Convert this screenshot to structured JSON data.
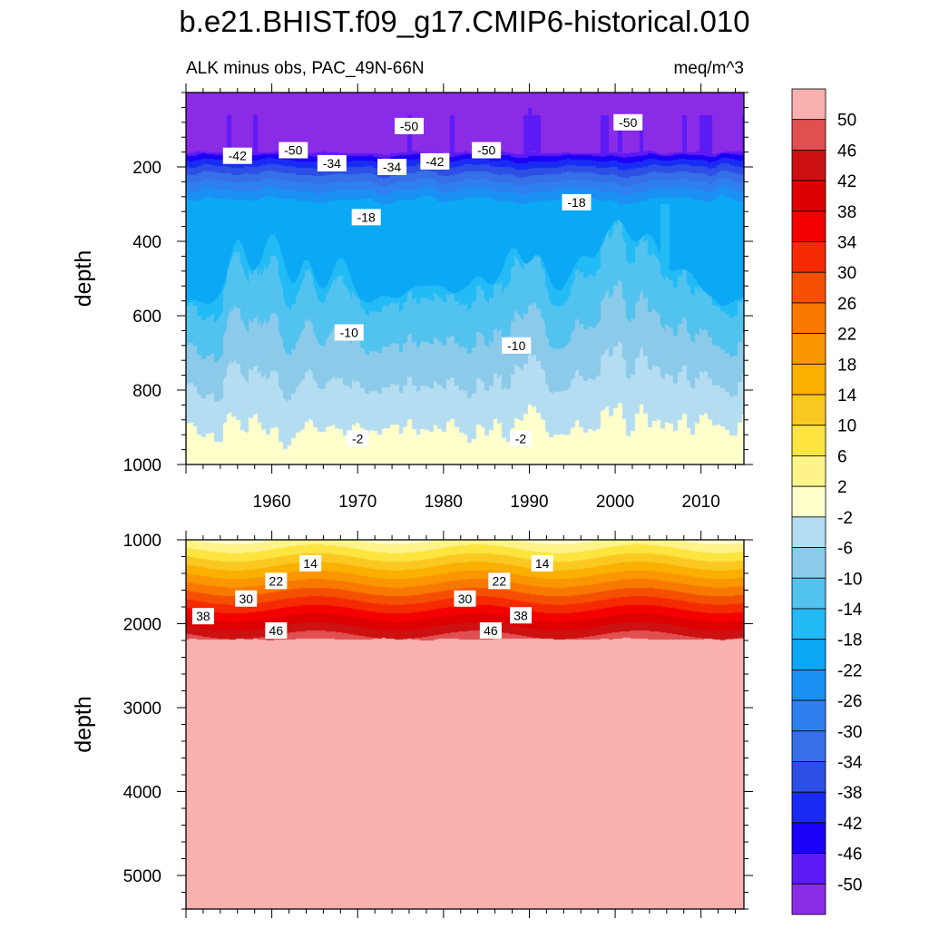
{
  "title": "b.e21.BHIST.f09_g17.CMIP6-historical.010",
  "subtitle_left": "ALK minus obs, PAC_49N-66N",
  "subtitle_right": "meq/m^3",
  "colors": {
    "levels_palette": [
      "#8a2be6",
      "#5c1af5",
      "#1a00f7",
      "#1a2bf5",
      "#2d4fe6",
      "#3670e8",
      "#2f80ef",
      "#1a90f5",
      "#0aa8f5",
      "#22bbf5",
      "#52c2ef",
      "#8ccaea",
      "#b5ddf2",
      "#ffffcc",
      "#fff38a",
      "#fde43f",
      "#fbc822",
      "#fbb000",
      "#fa9600",
      "#f87800",
      "#f55000",
      "#f52a00",
      "#f50000",
      "#de0000",
      "#cd1010",
      "#e05050",
      "#fbb0b0"
    ]
  },
  "chart_data": [
    {
      "type": "heatmap",
      "panel": "upper",
      "ylabel": "depth",
      "xlim": [
        1950,
        2015
      ],
      "ylim": [
        0,
        1000
      ],
      "y_inverted": true,
      "xticks": [
        1960,
        1970,
        1980,
        1990,
        2000,
        2010
      ],
      "xtick_labels": [
        "1960",
        "1970",
        "1980",
        "1990",
        "2000",
        "2010"
      ],
      "yticks": [
        200,
        400,
        600,
        800,
        1000
      ],
      "ytick_labels": [
        "200",
        "400",
        "600",
        "800",
        "1000"
      ],
      "contour_labels": [
        {
          "text": "-50",
          "x": 1962.5,
          "y": 155
        },
        {
          "text": "-42",
          "x": 1956.0,
          "y": 170
        },
        {
          "text": "-50",
          "x": 1976.0,
          "y": 90
        },
        {
          "text": "-34",
          "x": 1967.0,
          "y": 190
        },
        {
          "text": "-34",
          "x": 1974.0,
          "y": 200
        },
        {
          "text": "-42",
          "x": 1979.0,
          "y": 185
        },
        {
          "text": "-50",
          "x": 1985.0,
          "y": 155
        },
        {
          "text": "-50",
          "x": 2001.5,
          "y": 80
        },
        {
          "text": "-18",
          "x": 1971.0,
          "y": 335
        },
        {
          "text": "-18",
          "x": 1995.5,
          "y": 295
        },
        {
          "text": "-10",
          "x": 1969.0,
          "y": 645
        },
        {
          "text": "-10",
          "x": 1988.5,
          "y": 680
        },
        {
          "text": "-2",
          "x": 1970.0,
          "y": 930
        },
        {
          "text": "-2",
          "x": 1989.0,
          "y": 930
        }
      ]
    },
    {
      "type": "heatmap",
      "panel": "lower",
      "ylabel": "depth",
      "xlim": [
        1950,
        2015
      ],
      "ylim": [
        1000,
        5400
      ],
      "y_inverted": true,
      "yticks": [
        1000,
        2000,
        3000,
        4000,
        5000
      ],
      "ytick_labels": [
        "1000",
        "2000",
        "3000",
        "4000",
        "5000"
      ],
      "contour_labels": [
        {
          "text": "14",
          "x": 1964.5,
          "y": 1280
        },
        {
          "text": "14",
          "x": 1991.5,
          "y": 1280
        },
        {
          "text": "22",
          "x": 1960.5,
          "y": 1490
        },
        {
          "text": "22",
          "x": 1986.5,
          "y": 1490
        },
        {
          "text": "30",
          "x": 1957.0,
          "y": 1700
        },
        {
          "text": "30",
          "x": 1982.5,
          "y": 1700
        },
        {
          "text": "38",
          "x": 1952.0,
          "y": 1910
        },
        {
          "text": "38",
          "x": 1989.0,
          "y": 1900
        },
        {
          "text": "46",
          "x": 1960.5,
          "y": 2080
        },
        {
          "text": "46",
          "x": 1985.5,
          "y": 2080
        }
      ]
    }
  ],
  "colorbar": {
    "labels": [
      "50",
      "46",
      "42",
      "38",
      "34",
      "30",
      "26",
      "22",
      "18",
      "14",
      "10",
      "6",
      "2",
      "-2",
      "-6",
      "-10",
      "-14",
      "-18",
      "-22",
      "-26",
      "-30",
      "-34",
      "-38",
      "-42",
      "-46",
      "-50"
    ]
  }
}
